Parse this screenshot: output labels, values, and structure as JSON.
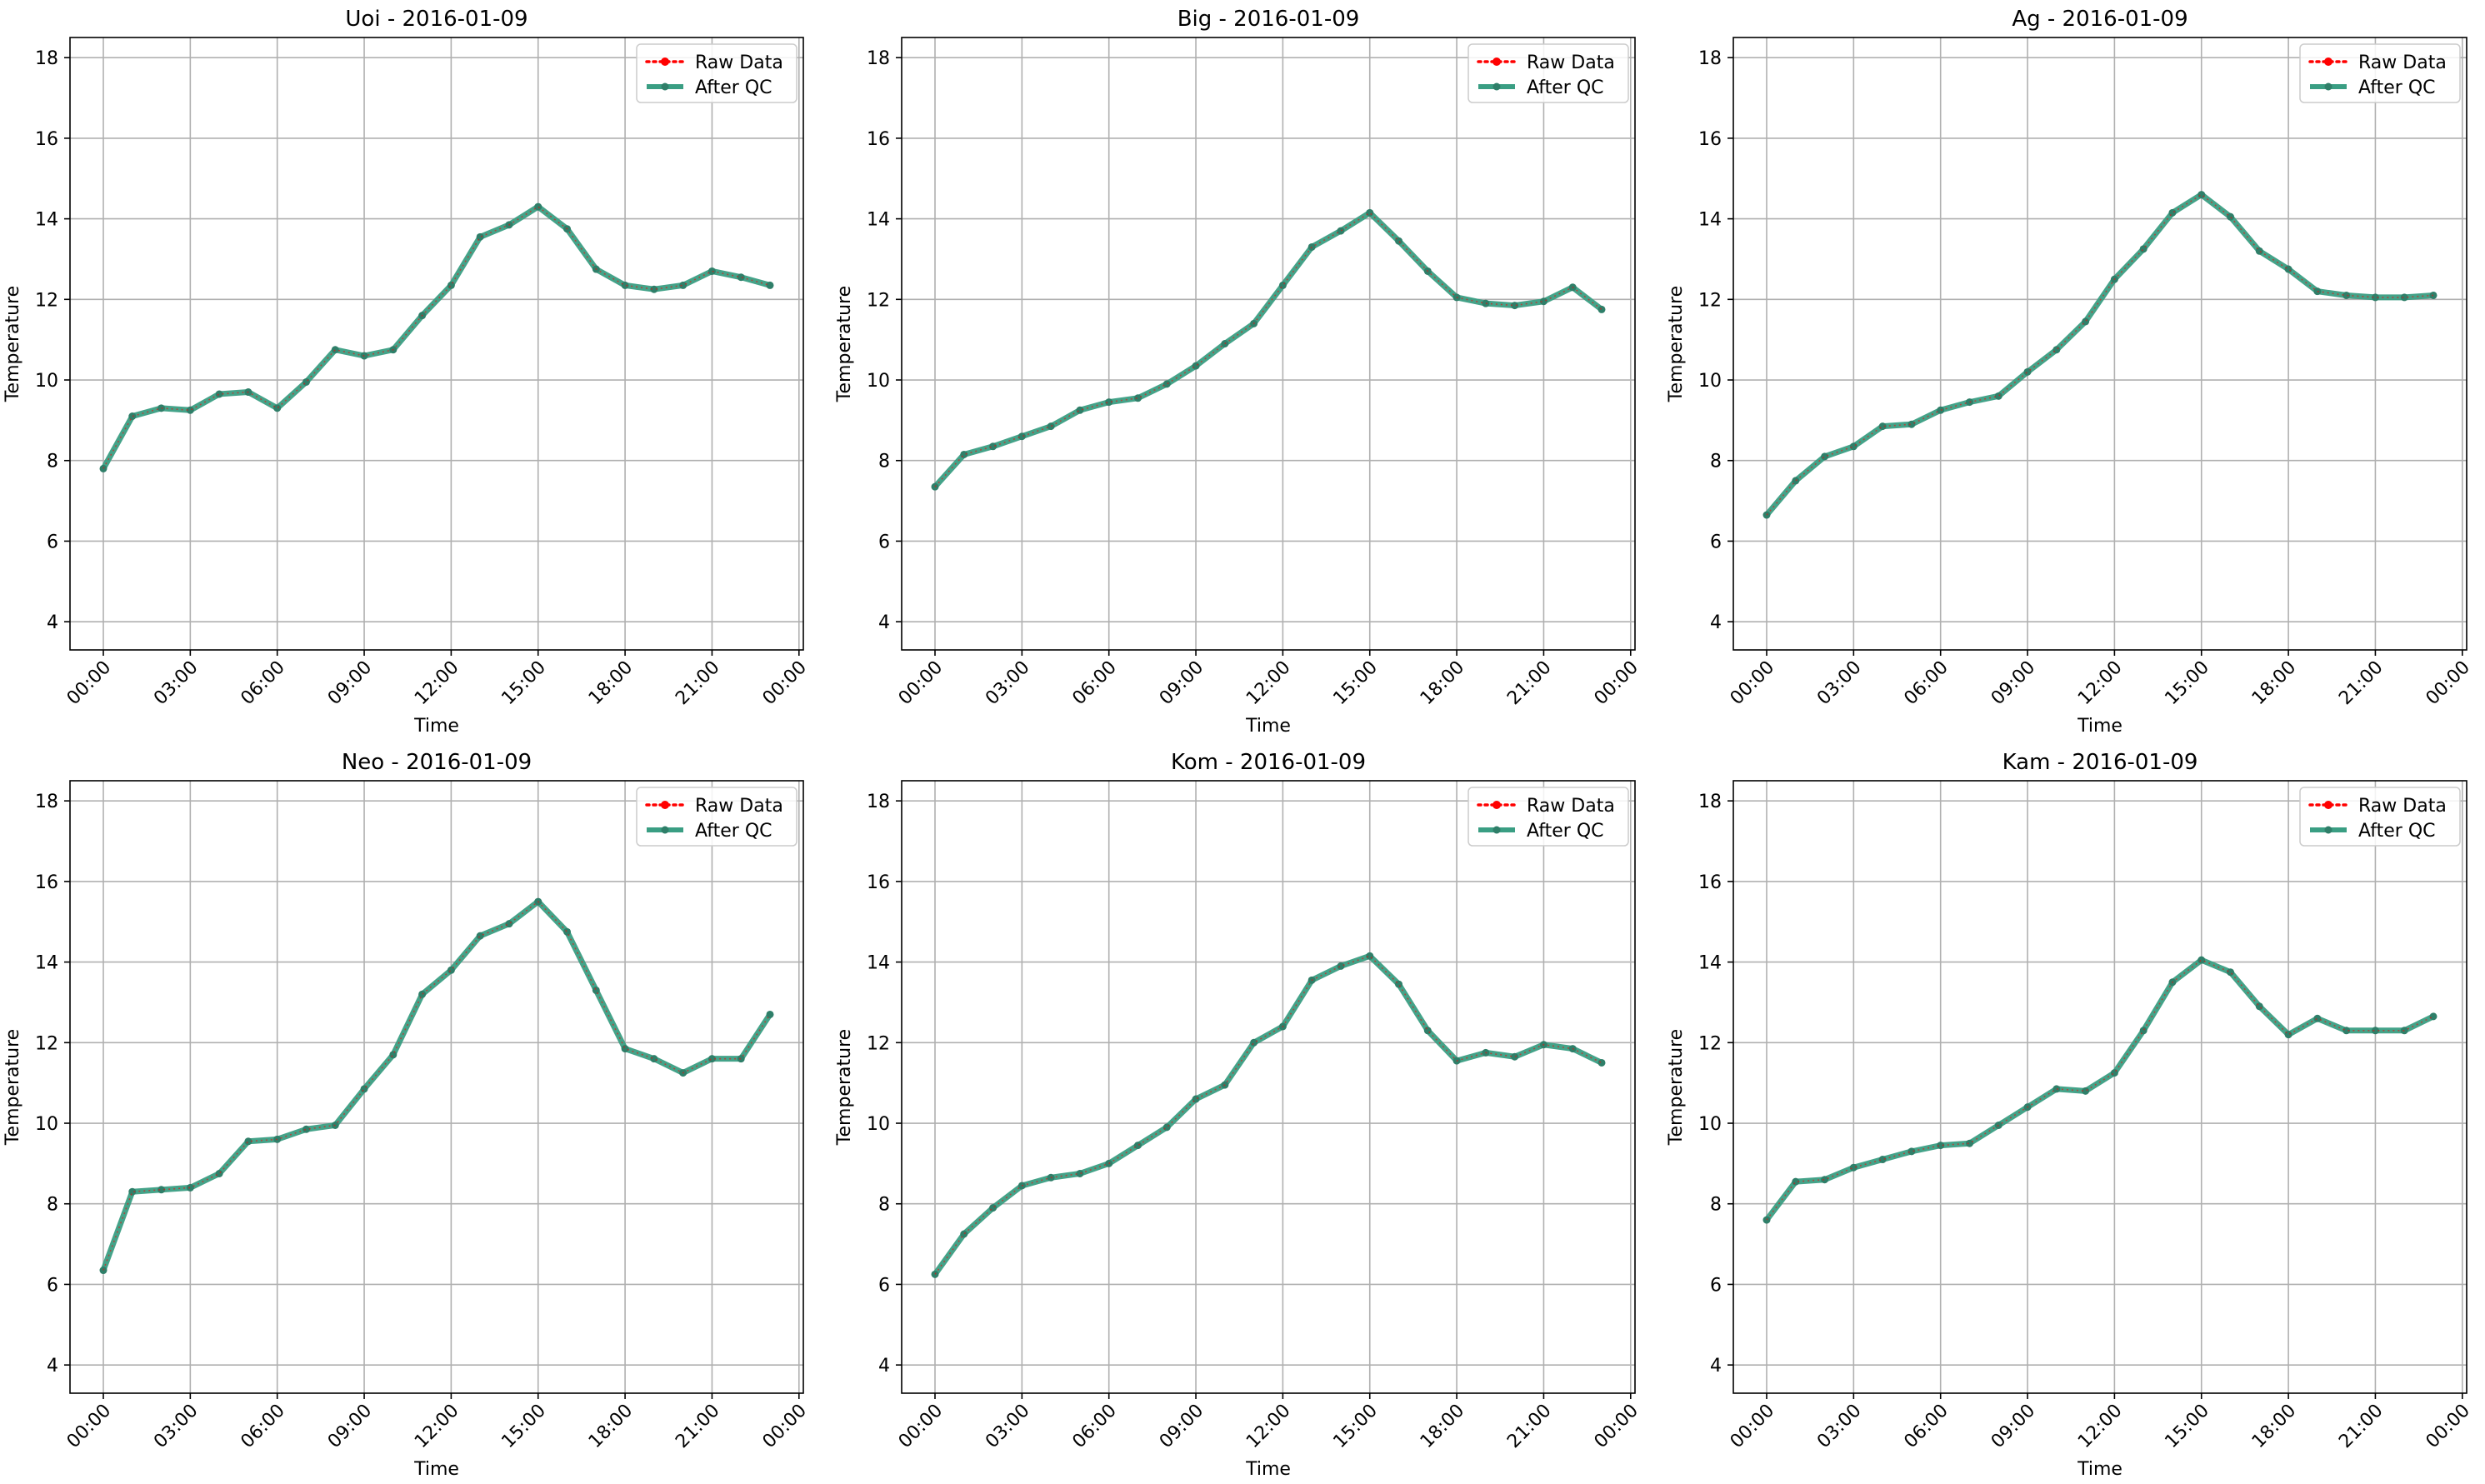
{
  "legend_labels": {
    "raw": "Raw Data",
    "qc": "After QC"
  },
  "colors": {
    "raw": "#ff0000",
    "qc": "#3a9e83",
    "qc_marker": "#2f7f69",
    "grid": "#b0b0b0"
  },
  "chart_data": [
    {
      "type": "line",
      "title": "Uoi - 2016-01-09",
      "xlabel": "Time",
      "ylabel": "Temperature",
      "x_unit": "hours",
      "xlim": [
        -1.15,
        24.15
      ],
      "ylim": [
        3.3,
        18.5
      ],
      "yticks": [
        4,
        6,
        8,
        10,
        12,
        14,
        16,
        18
      ],
      "xticks": [
        0,
        3,
        6,
        9,
        12,
        15,
        18,
        21,
        24
      ],
      "xtick_labels": [
        "00:00",
        "03:00",
        "06:00",
        "09:00",
        "12:00",
        "15:00",
        "18:00",
        "21:00",
        "00:00"
      ],
      "grid": true,
      "legend_position": "top-right",
      "x": [
        0,
        1,
        2,
        3,
        4,
        5,
        6,
        7,
        8,
        9,
        10,
        11,
        12,
        13,
        14,
        15,
        16,
        17,
        18,
        19,
        20,
        21,
        22,
        23
      ],
      "series": [
        {
          "name": "Raw Data",
          "values": [
            7.8,
            9.1,
            9.3,
            9.25,
            9.65,
            9.7,
            9.3,
            9.95,
            10.75,
            10.6,
            10.75,
            11.6,
            12.35,
            13.55,
            13.85,
            14.3,
            13.75,
            12.75,
            12.35,
            12.25,
            12.35,
            12.7,
            12.55,
            12.35
          ]
        },
        {
          "name": "After QC",
          "values": [
            7.8,
            9.1,
            9.3,
            9.25,
            9.65,
            9.7,
            9.3,
            9.95,
            10.75,
            10.6,
            10.75,
            11.6,
            12.35,
            13.55,
            13.85,
            14.3,
            13.75,
            12.75,
            12.35,
            12.25,
            12.35,
            12.7,
            12.55,
            12.35
          ]
        }
      ]
    },
    {
      "type": "line",
      "title": "Big - 2016-01-09",
      "xlabel": "Time",
      "ylabel": "Temperature",
      "x_unit": "hours",
      "xlim": [
        -1.15,
        24.15
      ],
      "ylim": [
        3.3,
        18.5
      ],
      "yticks": [
        4,
        6,
        8,
        10,
        12,
        14,
        16,
        18
      ],
      "xticks": [
        0,
        3,
        6,
        9,
        12,
        15,
        18,
        21,
        24
      ],
      "xtick_labels": [
        "00:00",
        "03:00",
        "06:00",
        "09:00",
        "12:00",
        "15:00",
        "18:00",
        "21:00",
        "00:00"
      ],
      "grid": true,
      "legend_position": "top-right",
      "x": [
        0,
        1,
        2,
        3,
        4,
        5,
        6,
        7,
        8,
        9,
        10,
        11,
        12,
        13,
        14,
        15,
        16,
        17,
        18,
        19,
        20,
        21,
        22,
        23
      ],
      "series": [
        {
          "name": "Raw Data",
          "values": [
            7.35,
            8.15,
            8.35,
            8.6,
            8.85,
            9.25,
            9.45,
            9.55,
            9.9,
            10.35,
            10.9,
            11.4,
            12.35,
            13.3,
            13.7,
            14.15,
            13.45,
            12.7,
            12.05,
            11.9,
            11.85,
            11.95,
            12.3,
            11.75
          ]
        },
        {
          "name": "After QC",
          "values": [
            7.35,
            8.15,
            8.35,
            8.6,
            8.85,
            9.25,
            9.45,
            9.55,
            9.9,
            10.35,
            10.9,
            11.4,
            12.35,
            13.3,
            13.7,
            14.15,
            13.45,
            12.7,
            12.05,
            11.9,
            11.85,
            11.95,
            12.3,
            11.75
          ]
        }
      ]
    },
    {
      "type": "line",
      "title": "Ag - 2016-01-09",
      "xlabel": "Time",
      "ylabel": "Temperature",
      "x_unit": "hours",
      "xlim": [
        -1.15,
        24.15
      ],
      "ylim": [
        3.3,
        18.5
      ],
      "yticks": [
        4,
        6,
        8,
        10,
        12,
        14,
        16,
        18
      ],
      "xticks": [
        0,
        3,
        6,
        9,
        12,
        15,
        18,
        21,
        24
      ],
      "xtick_labels": [
        "00:00",
        "03:00",
        "06:00",
        "09:00",
        "12:00",
        "15:00",
        "18:00",
        "21:00",
        "00:00"
      ],
      "grid": true,
      "legend_position": "top-right",
      "x": [
        0,
        1,
        2,
        3,
        4,
        5,
        6,
        7,
        8,
        9,
        10,
        11,
        12,
        13,
        14,
        15,
        16,
        17,
        18,
        19,
        20,
        21,
        22,
        23
      ],
      "series": [
        {
          "name": "Raw Data",
          "values": [
            6.65,
            7.5,
            8.1,
            8.35,
            8.85,
            8.9,
            9.25,
            9.45,
            9.6,
            10.2,
            10.75,
            11.45,
            12.5,
            13.25,
            14.15,
            14.6,
            14.05,
            13.2,
            12.75,
            12.2,
            12.1,
            12.05,
            12.05,
            12.1
          ]
        },
        {
          "name": "After QC",
          "values": [
            6.65,
            7.5,
            8.1,
            8.35,
            8.85,
            8.9,
            9.25,
            9.45,
            9.6,
            10.2,
            10.75,
            11.45,
            12.5,
            13.25,
            14.15,
            14.6,
            14.05,
            13.2,
            12.75,
            12.2,
            12.1,
            12.05,
            12.05,
            12.1
          ]
        }
      ]
    },
    {
      "type": "line",
      "title": "Neo - 2016-01-09",
      "xlabel": "Time",
      "ylabel": "Temperature",
      "x_unit": "hours",
      "xlim": [
        -1.15,
        24.15
      ],
      "ylim": [
        3.3,
        18.5
      ],
      "yticks": [
        4,
        6,
        8,
        10,
        12,
        14,
        16,
        18
      ],
      "xticks": [
        0,
        3,
        6,
        9,
        12,
        15,
        18,
        21,
        24
      ],
      "xtick_labels": [
        "00:00",
        "03:00",
        "06:00",
        "09:00",
        "12:00",
        "15:00",
        "18:00",
        "21:00",
        "00:00"
      ],
      "grid": true,
      "legend_position": "top-right",
      "x": [
        0,
        1,
        2,
        3,
        4,
        5,
        6,
        7,
        8,
        9,
        10,
        11,
        12,
        13,
        14,
        15,
        16,
        17,
        18,
        19,
        20,
        21,
        22,
        23
      ],
      "series": [
        {
          "name": "Raw Data",
          "values": [
            6.35,
            8.3,
            8.35,
            8.4,
            8.75,
            9.55,
            9.6,
            9.85,
            9.95,
            10.85,
            11.7,
            13.2,
            13.8,
            14.65,
            14.95,
            15.5,
            14.75,
            13.3,
            11.85,
            11.6,
            11.25,
            11.6,
            11.6,
            12.7
          ]
        },
        {
          "name": "After QC",
          "values": [
            6.35,
            8.3,
            8.35,
            8.4,
            8.75,
            9.55,
            9.6,
            9.85,
            9.95,
            10.85,
            11.7,
            13.2,
            13.8,
            14.65,
            14.95,
            15.5,
            14.75,
            13.3,
            11.85,
            11.6,
            11.25,
            11.6,
            11.6,
            12.7
          ]
        }
      ]
    },
    {
      "type": "line",
      "title": "Kom - 2016-01-09",
      "xlabel": "Time",
      "ylabel": "Temperature",
      "x_unit": "hours",
      "xlim": [
        -1.15,
        24.15
      ],
      "ylim": [
        3.3,
        18.5
      ],
      "yticks": [
        4,
        6,
        8,
        10,
        12,
        14,
        16,
        18
      ],
      "xticks": [
        0,
        3,
        6,
        9,
        12,
        15,
        18,
        21,
        24
      ],
      "xtick_labels": [
        "00:00",
        "03:00",
        "06:00",
        "09:00",
        "12:00",
        "15:00",
        "18:00",
        "21:00",
        "00:00"
      ],
      "grid": true,
      "legend_position": "top-right",
      "x": [
        0,
        1,
        2,
        3,
        4,
        5,
        6,
        7,
        8,
        9,
        10,
        11,
        12,
        13,
        14,
        15,
        16,
        17,
        18,
        19,
        20,
        21,
        22,
        23
      ],
      "series": [
        {
          "name": "Raw Data",
          "values": [
            6.25,
            7.25,
            7.9,
            8.45,
            8.65,
            8.75,
            9.0,
            9.45,
            9.9,
            10.6,
            10.95,
            12.0,
            12.4,
            13.55,
            13.9,
            14.15,
            13.45,
            12.3,
            11.55,
            11.75,
            11.65,
            11.95,
            11.85,
            11.5
          ]
        },
        {
          "name": "After QC",
          "values": [
            6.25,
            7.25,
            7.9,
            8.45,
            8.65,
            8.75,
            9.0,
            9.45,
            9.9,
            10.6,
            10.95,
            12.0,
            12.4,
            13.55,
            13.9,
            14.15,
            13.45,
            12.3,
            11.55,
            11.75,
            11.65,
            11.95,
            11.85,
            11.5
          ]
        }
      ]
    },
    {
      "type": "line",
      "title": "Kam - 2016-01-09",
      "xlabel": "Time",
      "ylabel": "Temperature",
      "x_unit": "hours",
      "xlim": [
        -1.15,
        24.15
      ],
      "ylim": [
        3.3,
        18.5
      ],
      "yticks": [
        4,
        6,
        8,
        10,
        12,
        14,
        16,
        18
      ],
      "xticks": [
        0,
        3,
        6,
        9,
        12,
        15,
        18,
        21,
        24
      ],
      "xtick_labels": [
        "00:00",
        "03:00",
        "06:00",
        "09:00",
        "12:00",
        "15:00",
        "18:00",
        "21:00",
        "00:00"
      ],
      "grid": true,
      "legend_position": "top-right",
      "x": [
        0,
        1,
        2,
        3,
        4,
        5,
        6,
        7,
        8,
        9,
        10,
        11,
        12,
        13,
        14,
        15,
        16,
        17,
        18,
        19,
        20,
        21,
        22,
        23
      ],
      "series": [
        {
          "name": "Raw Data",
          "values": [
            7.6,
            8.55,
            8.6,
            8.9,
            9.1,
            9.3,
            9.45,
            9.5,
            9.95,
            10.4,
            10.85,
            10.8,
            11.25,
            12.3,
            13.5,
            14.05,
            13.75,
            12.9,
            12.2,
            12.6,
            12.3,
            12.3,
            12.3,
            12.65
          ]
        },
        {
          "name": "After QC",
          "values": [
            7.6,
            8.55,
            8.6,
            8.9,
            9.1,
            9.3,
            9.45,
            9.5,
            9.95,
            10.4,
            10.85,
            10.8,
            11.25,
            12.3,
            13.5,
            14.05,
            13.75,
            12.9,
            12.2,
            12.6,
            12.3,
            12.3,
            12.3,
            12.65
          ]
        }
      ]
    }
  ]
}
